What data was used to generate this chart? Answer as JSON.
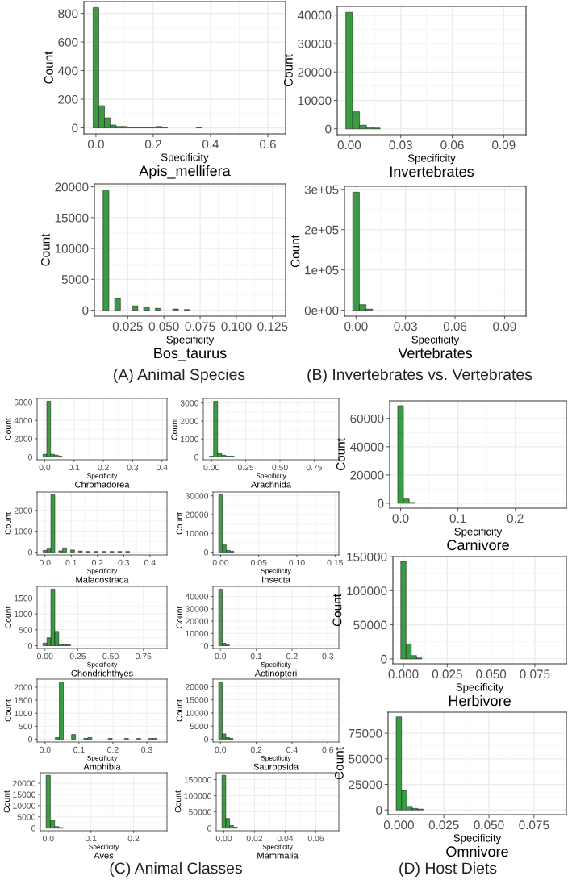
{
  "chart_data": [
    {
      "type": "histogram",
      "title": "Apis_mellifera",
      "xlabel": "Specificity",
      "ylabel": "Count",
      "color": "#3b9b43",
      "grid": true,
      "bins": [
        -0.01,
        0.01,
        0.03,
        0.05,
        0.07,
        0.09,
        0.11,
        0.13,
        0.15,
        0.17,
        0.19,
        0.21,
        0.23,
        0.25,
        0.27,
        0.29,
        0.31,
        0.33,
        0.35,
        0.37,
        0.39,
        0.41,
        0.43,
        0.45,
        0.47,
        0.49,
        0.51,
        0.53,
        0.55,
        0.57,
        0.59,
        0.61,
        0.63
      ],
      "values": [
        840,
        155,
        70,
        20,
        10,
        10,
        5,
        5,
        5,
        5,
        5,
        10,
        5,
        0,
        0,
        0,
        0,
        0,
        5,
        0,
        0,
        0,
        0,
        0,
        0,
        0,
        0,
        0,
        0,
        0,
        0,
        0
      ],
      "xlim": [
        -0.042,
        0.662
      ],
      "ylim": [
        -42,
        882
      ],
      "xticks": [
        {
          "value": 0,
          "label": "0.0"
        },
        0.2,
        0.4,
        0.6
      ],
      "yticks": [
        0,
        200,
        400,
        600,
        800
      ]
    },
    {
      "type": "histogram",
      "title": "Invertebrates",
      "xlabel": "Specificity",
      "ylabel": "Count",
      "color": "#3b9b43",
      "grid": true,
      "bins": [
        -0.002,
        0.002,
        0.006,
        0.01,
        0.014,
        0.018,
        0.022,
        0.026,
        0.03,
        0.034,
        0.038,
        0.042,
        0.046,
        0.05,
        0.054,
        0.058,
        0.062,
        0.066,
        0.07,
        0.074,
        0.078,
        0.082,
        0.086,
        0.09,
        0.094,
        0.098
      ],
      "values": [
        41000,
        6000,
        1300,
        600,
        300,
        0,
        0,
        0,
        0,
        0,
        0,
        0,
        0,
        0,
        0,
        0,
        0,
        0,
        0,
        0,
        0,
        0,
        0,
        0,
        0
      ],
      "xlim": [
        -0.007,
        0.103
      ],
      "ylim": [
        -2050,
        43050
      ],
      "xticks": [
        {
          "value": 0,
          "label": "0.00"
        },
        0.03,
        0.06,
        0.09
      ],
      "yticks": [
        0,
        10000,
        20000,
        30000,
        40000
      ]
    },
    {
      "type": "histogram",
      "title": "Bos_taurus",
      "xlabel": "Specificity",
      "ylabel": "Count",
      "color": "#3b9b43",
      "grid": true,
      "annotations": [
        "(A) Animal Species"
      ],
      "bins": [
        0.008,
        0.012,
        0.016,
        0.02,
        0.024,
        0.028,
        0.032,
        0.036,
        0.04,
        0.044,
        0.048,
        0.052,
        0.056,
        0.06,
        0.064,
        0.068,
        0.072,
        0.076,
        0.08,
        0.084,
        0.088,
        0.092,
        0.096,
        0.1,
        0.104,
        0.108,
        0.112,
        0.116,
        0.12,
        0.124,
        0.128
      ],
      "values": [
        19500,
        0,
        1900,
        0,
        0,
        700,
        0,
        500,
        0,
        300,
        0,
        0,
        200,
        0,
        100,
        0,
        0,
        0,
        0,
        0,
        0,
        0,
        0,
        0,
        0,
        0,
        0,
        0,
        0,
        0
      ],
      "xlim": [
        0.002,
        0.134
      ],
      "ylim": [
        -975,
        20475
      ],
      "xticks": [
        0.025,
        {
          "value": 0.05,
          "label": "0.050"
        },
        0.075,
        {
          "value": 0.1,
          "label": "0.100"
        },
        0.125
      ],
      "yticks": [
        0,
        5000,
        10000,
        15000,
        20000
      ]
    },
    {
      "type": "histogram",
      "title": "Vertebrates",
      "xlabel": "Specificity",
      "ylabel": "Count",
      "color": "#3b9b43",
      "grid": true,
      "annotations": [
        "(B) Invertebrates vs. Vertebrates"
      ],
      "bins": [
        -0.002,
        0.002,
        0.006,
        0.01,
        0.014,
        0.018,
        0.022,
        0.026,
        0.03,
        0.034,
        0.038,
        0.042,
        0.046,
        0.05,
        0.054,
        0.058,
        0.062,
        0.066,
        0.07,
        0.074,
        0.078,
        0.082,
        0.086,
        0.09,
        0.094,
        0.098
      ],
      "values": [
        293000,
        14000,
        3000,
        0,
        0,
        0,
        0,
        0,
        0,
        0,
        0,
        0,
        0,
        0,
        0,
        0,
        0,
        0,
        0,
        0,
        0,
        0,
        0,
        0,
        0
      ],
      "xlim": [
        -0.007,
        0.103
      ],
      "ylim": [
        -14650,
        307650
      ],
      "xticks": [
        {
          "value": 0,
          "label": "0.00"
        },
        0.03,
        0.06,
        0.09
      ],
      "yticks": [
        {
          "value": 0,
          "label": "0e+00"
        },
        {
          "value": 100000,
          "label": "1e+05"
        },
        {
          "value": 200000,
          "label": "2e+05"
        },
        {
          "value": 300000,
          "label": "3e+05"
        }
      ]
    },
    {
      "type": "histogram",
      "title": "Chromadorea",
      "xlabel": "Specificity",
      "ylabel": "Count",
      "color": "#3b9b43",
      "grid": true,
      "bins": [
        -0.006,
        0.007,
        0.02,
        0.033,
        0.046,
        0.059,
        0.072,
        0.085,
        0.098,
        0.111,
        0.124,
        0.137,
        0.15,
        0.163,
        0.176,
        0.189,
        0.202,
        0.215,
        0.228,
        0.241,
        0.254,
        0.267,
        0.28,
        0.293,
        0.306,
        0.319,
        0.332,
        0.345,
        0.358,
        0.371,
        0.384,
        0.397
      ],
      "values": [
        300,
        6100,
        300,
        200,
        100,
        0,
        0,
        0,
        0,
        0,
        0,
        0,
        0,
        0,
        0,
        0,
        0,
        0,
        0,
        0,
        0,
        0,
        0,
        0,
        0,
        0,
        0,
        0,
        0,
        0,
        0
      ],
      "xlim": [
        -0.026,
        0.417
      ],
      "ylim": [
        -305,
        6405
      ],
      "xticks": [
        {
          "value": 0,
          "label": "0.0"
        },
        0.1,
        0.2,
        0.3,
        0.4
      ],
      "yticks": [
        0,
        2000,
        4000,
        6000
      ]
    },
    {
      "type": "histogram",
      "title": "Arachnida",
      "xlabel": "Specificity",
      "ylabel": "Count",
      "color": "#3b9b43",
      "grid": true,
      "bins": [
        -0.015,
        0.015,
        0.045,
        0.075,
        0.105,
        0.135,
        0.165,
        0.195,
        0.225,
        0.255,
        0.285,
        0.315,
        0.345,
        0.375,
        0.405,
        0.435,
        0.465,
        0.495,
        0.525,
        0.555,
        0.585,
        0.615,
        0.645,
        0.675,
        0.705,
        0.735,
        0.765,
        0.795,
        0.825,
        0.855,
        0.885
      ],
      "values": [
        50,
        3100,
        200,
        100,
        50,
        50,
        0,
        0,
        0,
        0,
        0,
        0,
        0,
        0,
        0,
        0,
        0,
        0,
        0,
        0,
        0,
        0,
        0,
        0,
        0,
        0,
        0,
        0,
        0,
        0
      ],
      "xlim": [
        -0.06,
        0.93
      ],
      "ylim": [
        -155,
        3255
      ],
      "xticks": [
        {
          "value": 0,
          "label": "0.00"
        },
        0.25,
        {
          "value": 0.5,
          "label": "0.50"
        },
        0.75
      ],
      "yticks": [
        0,
        1000,
        2000,
        3000
      ]
    },
    {
      "type": "histogram",
      "title": "Malacostraca",
      "xlabel": "Specificity",
      "ylabel": "Count",
      "color": "#3b9b43",
      "grid": true,
      "bins": [
        -0.0075,
        0.0075,
        0.0225,
        0.0375,
        0.0525,
        0.0675,
        0.0825,
        0.0975,
        0.1125,
        0.1275,
        0.1425,
        0.1575,
        0.1725,
        0.1875,
        0.2025,
        0.2175,
        0.2325,
        0.2475,
        0.2625,
        0.2775,
        0.2925,
        0.3075,
        0.3225,
        0.3375,
        0.3525,
        0.3675,
        0.3825,
        0.3975,
        0.4125,
        0.4275,
        0.4425
      ],
      "values": [
        80,
        150,
        2750,
        0,
        60,
        200,
        0,
        100,
        0,
        50,
        0,
        30,
        0,
        30,
        0,
        30,
        0,
        30,
        0,
        30,
        0,
        30,
        0,
        0,
        0,
        0,
        0,
        0,
        0,
        0
      ],
      "xlim": [
        -0.03,
        0.465
      ],
      "ylim": [
        -137.5,
        2887.5
      ],
      "xticks": [
        {
          "value": 0,
          "label": "0.0"
        },
        0.1,
        0.2,
        0.3,
        0.4
      ],
      "yticks": [
        0,
        1000,
        2000
      ]
    },
    {
      "type": "histogram",
      "title": "Insecta",
      "xlabel": "Specificity",
      "ylabel": "Count",
      "color": "#3b9b43",
      "grid": true,
      "bins": [
        -0.0025,
        0.0025,
        0.0075,
        0.0125,
        0.0175,
        0.0225,
        0.0275,
        0.0325,
        0.0375,
        0.0425,
        0.0475,
        0.0525,
        0.0575,
        0.0625,
        0.0675,
        0.0725,
        0.0775,
        0.0825,
        0.0875,
        0.0925,
        0.0975,
        0.1025,
        0.1075,
        0.1125,
        0.1175,
        0.1225,
        0.1275,
        0.1325,
        0.1375,
        0.1425,
        0.1475
      ],
      "values": [
        30500,
        3800,
        900,
        400,
        0,
        0,
        0,
        0,
        0,
        0,
        0,
        0,
        0,
        0,
        0,
        0,
        0,
        0,
        0,
        0,
        0,
        0,
        0,
        0,
        0,
        0,
        0,
        0,
        0,
        0
      ],
      "xlim": [
        -0.01,
        0.155
      ],
      "ylim": [
        -1525,
        32025
      ],
      "xticks": [
        {
          "value": 0,
          "label": "0.00"
        },
        0.05,
        {
          "value": 0.1,
          "label": "0.10"
        },
        0.15
      ],
      "yticks": [
        0,
        10000,
        20000,
        30000
      ]
    },
    {
      "type": "histogram",
      "title": "Chondrichthyes",
      "xlabel": "Specificity",
      "ylabel": "Count",
      "color": "#3b9b43",
      "grid": true,
      "bins": [
        -0.015,
        0.015,
        0.045,
        0.075,
        0.105,
        0.135,
        0.165,
        0.195,
        0.225,
        0.255,
        0.285,
        0.315,
        0.345,
        0.375,
        0.405,
        0.435,
        0.465,
        0.495,
        0.525,
        0.555,
        0.585,
        0.615,
        0.645,
        0.675,
        0.705,
        0.735,
        0.765,
        0.795,
        0.825,
        0.855,
        0.885
      ],
      "values": [
        80,
        250,
        1780,
        450,
        50,
        25,
        25,
        0,
        0,
        0,
        0,
        0,
        0,
        0,
        0,
        0,
        0,
        0,
        0,
        0,
        0,
        0,
        0,
        0,
        0,
        0,
        0,
        0,
        0,
        0
      ],
      "xlim": [
        -0.06,
        0.93
      ],
      "ylim": [
        -89,
        1869
      ],
      "xticks": [
        {
          "value": 0,
          "label": "0.00"
        },
        0.25,
        {
          "value": 0.5,
          "label": "0.50"
        },
        0.75
      ],
      "yticks": [
        0,
        500,
        1000,
        1500
      ]
    },
    {
      "type": "histogram",
      "title": "Actinopteri",
      "xlabel": "Specificity",
      "ylabel": "Count",
      "color": "#3b9b43",
      "grid": true,
      "bins": [
        -0.005,
        0.005,
        0.015,
        0.025,
        0.035,
        0.045,
        0.055,
        0.065,
        0.075,
        0.085,
        0.095,
        0.105,
        0.115,
        0.125,
        0.135,
        0.145,
        0.155,
        0.165,
        0.175,
        0.185,
        0.195,
        0.205,
        0.215,
        0.225,
        0.235,
        0.245,
        0.255,
        0.265,
        0.275,
        0.285,
        0.295,
        0.305,
        0.315
      ],
      "values": [
        46000,
        2000,
        600,
        0,
        0,
        0,
        0,
        0,
        0,
        0,
        0,
        0,
        0,
        0,
        0,
        0,
        0,
        0,
        0,
        0,
        0,
        0,
        0,
        0,
        0,
        0,
        0,
        0,
        0,
        0,
        0,
        0
      ],
      "xlim": [
        -0.021,
        0.331
      ],
      "ylim": [
        -2300,
        48300
      ],
      "xticks": [
        {
          "value": 0,
          "label": "0.0"
        },
        0.1,
        0.2,
        0.3
      ],
      "yticks": [
        0,
        10000,
        20000,
        30000,
        40000
      ]
    },
    {
      "type": "histogram",
      "title": "Amphibia",
      "xlabel": "Specificity",
      "ylabel": "Count",
      "color": "#3b9b43",
      "grid": true,
      "bins": [
        -0.006,
        0.006,
        0.018,
        0.03,
        0.042,
        0.054,
        0.066,
        0.078,
        0.09,
        0.102,
        0.114,
        0.126,
        0.138,
        0.15,
        0.162,
        0.174,
        0.186,
        0.198,
        0.21,
        0.222,
        0.234,
        0.246,
        0.258,
        0.27,
        0.282,
        0.294,
        0.306,
        0.318,
        0.33,
        0.342
      ],
      "values": [
        0,
        0,
        0,
        60,
        2200,
        0,
        0,
        180,
        0,
        0,
        30,
        60,
        0,
        0,
        0,
        0,
        30,
        0,
        0,
        0,
        30,
        0,
        0,
        30,
        0,
        0,
        30,
        30,
        0
      ],
      "xlim": [
        -0.0234,
        0.3594
      ],
      "ylim": [
        -110,
        2310
      ],
      "xticks": [
        {
          "value": 0,
          "label": "0.0"
        },
        0.1,
        0.2,
        0.3
      ],
      "yticks": [
        0,
        500,
        1000,
        1500,
        2000
      ]
    },
    {
      "type": "histogram",
      "title": "Sauropsida",
      "xlabel": "Specificity",
      "ylabel": "Count",
      "color": "#3b9b43",
      "grid": true,
      "bins": [
        -0.01,
        0.01,
        0.03,
        0.05,
        0.07,
        0.09,
        0.11,
        0.13,
        0.15,
        0.17,
        0.19,
        0.21,
        0.23,
        0.25,
        0.27,
        0.29,
        0.31,
        0.33,
        0.35,
        0.37,
        0.39,
        0.41,
        0.43,
        0.45,
        0.47,
        0.49,
        0.51,
        0.53,
        0.55,
        0.57,
        0.59,
        0.61,
        0.63
      ],
      "values": [
        21800,
        2000,
        600,
        300,
        0,
        0,
        0,
        0,
        0,
        0,
        0,
        0,
        0,
        0,
        0,
        0,
        0,
        0,
        0,
        0,
        0,
        0,
        0,
        0,
        0,
        0,
        0,
        0,
        0,
        0,
        0,
        0
      ],
      "xlim": [
        -0.042,
        0.662
      ],
      "ylim": [
        -1090,
        22890
      ],
      "xticks": [
        {
          "value": 0,
          "label": "0.0"
        },
        0.2,
        0.4,
        0.6
      ],
      "yticks": [
        0,
        5000,
        10000,
        15000,
        20000
      ]
    },
    {
      "type": "histogram",
      "title": "Aves",
      "xlabel": "Specificity",
      "ylabel": "Count",
      "color": "#3b9b43",
      "grid": true,
      "bins": [
        -0.005,
        0.005,
        0.015,
        0.025,
        0.035,
        0.045,
        0.055,
        0.065,
        0.075,
        0.085,
        0.095,
        0.105,
        0.115,
        0.125,
        0.135,
        0.145,
        0.155,
        0.165,
        0.175,
        0.185,
        0.195,
        0.205,
        0.215,
        0.225,
        0.235,
        0.245,
        0.255,
        0.265
      ],
      "values": [
        23500,
        3600,
        700,
        300,
        0,
        0,
        0,
        0,
        0,
        0,
        0,
        0,
        0,
        0,
        0,
        0,
        0,
        0,
        0,
        0,
        0,
        0,
        0,
        0,
        0,
        0,
        0
      ],
      "xlim": [
        -0.0185,
        0.2785
      ],
      "ylim": [
        -1175,
        24675
      ],
      "xticks": [
        {
          "value": 0,
          "label": "0.0"
        },
        0.1,
        0.2
      ],
      "yticks": [
        0,
        5000,
        10000,
        15000,
        20000
      ]
    },
    {
      "type": "histogram",
      "title": "Mammalia",
      "xlabel": "Specificity",
      "ylabel": "Count",
      "color": "#3b9b43",
      "grid": true,
      "annotations": [
        "(C) Animal Classes"
      ],
      "bins": [
        -0.00125,
        0.00125,
        0.00375,
        0.00625,
        0.00875,
        0.01125,
        0.01375,
        0.01625,
        0.01875,
        0.02125,
        0.02375,
        0.02625,
        0.02875,
        0.03125,
        0.03375,
        0.03625,
        0.03875,
        0.04125,
        0.04375,
        0.04625,
        0.04875,
        0.05125,
        0.05375,
        0.05625,
        0.05875,
        0.06125,
        0.06375,
        0.06625,
        0.06875,
        0.07125
      ],
      "values": [
        163000,
        30000,
        8000,
        3000,
        0,
        0,
        0,
        0,
        0,
        0,
        0,
        0,
        0,
        0,
        0,
        0,
        0,
        0,
        0,
        0,
        0,
        0,
        0,
        0,
        0,
        0,
        0,
        0,
        0
      ],
      "xlim": [
        -0.005,
        0.075
      ],
      "ylim": [
        -8150,
        171150
      ],
      "xticks": [
        {
          "value": 0,
          "label": "0.00"
        },
        0.02,
        0.04,
        0.06
      ],
      "yticks": [
        0,
        50000,
        100000,
        150000
      ]
    },
    {
      "type": "histogram",
      "title": "Carnivore",
      "xlabel": "Specificity",
      "ylabel": "Count",
      "color": "#3b9b43",
      "grid": true,
      "bins": [
        -0.005,
        0.005,
        0.015,
        0.025,
        0.035,
        0.045,
        0.055,
        0.065,
        0.075,
        0.085,
        0.095,
        0.105,
        0.115,
        0.125,
        0.135,
        0.145,
        0.155,
        0.165,
        0.175,
        0.185,
        0.195,
        0.205,
        0.215,
        0.225,
        0.235,
        0.245,
        0.255,
        0.265,
        0.275
      ],
      "values": [
        69000,
        3000,
        600,
        0,
        0,
        0,
        0,
        0,
        0,
        0,
        0,
        0,
        0,
        0,
        0,
        0,
        0,
        0,
        0,
        0,
        0,
        0,
        0,
        0,
        0,
        0,
        0,
        0
      ],
      "xlim": [
        -0.019,
        0.289
      ],
      "ylim": [
        -3450,
        72450
      ],
      "xticks": [
        {
          "value": 0,
          "label": "0.0"
        },
        0.1,
        0.2
      ],
      "yticks": [
        0,
        20000,
        40000,
        60000
      ]
    },
    {
      "type": "histogram",
      "title": "Herbivore",
      "xlabel": "Specificity",
      "ylabel": "Count",
      "color": "#3b9b43",
      "grid": true,
      "bins": [
        -0.0015,
        0.0015,
        0.0045,
        0.0075,
        0.0105,
        0.0135,
        0.0165,
        0.0195,
        0.0225,
        0.0255,
        0.0285,
        0.0315,
        0.0345,
        0.0375,
        0.0405,
        0.0435,
        0.0465,
        0.0495,
        0.0525,
        0.0555,
        0.0585,
        0.0615,
        0.0645,
        0.0675,
        0.0705,
        0.0735,
        0.0765,
        0.0795,
        0.0825,
        0.0855,
        0.0885
      ],
      "values": [
        143000,
        22000,
        5000,
        1500,
        0,
        0,
        0,
        0,
        0,
        0,
        0,
        0,
        0,
        0,
        0,
        0,
        0,
        0,
        0,
        0,
        0,
        0,
        0,
        0,
        0,
        0,
        0,
        0,
        0,
        0
      ],
      "xlim": [
        -0.006,
        0.093
      ],
      "ylim": [
        -7150,
        150150
      ],
      "xticks": [
        {
          "value": 0,
          "label": "0.000"
        },
        0.025,
        {
          "value": 0.05,
          "label": "0.050"
        },
        0.075
      ],
      "yticks": [
        0,
        50000,
        100000,
        150000
      ]
    },
    {
      "type": "histogram",
      "title": "Omnivore",
      "xlabel": "Specificity",
      "ylabel": "Count",
      "color": "#3b9b43",
      "grid": true,
      "annotations": [
        "(D) Host Diets"
      ],
      "bins": [
        -0.0015,
        0.0015,
        0.0045,
        0.0075,
        0.0105,
        0.0135,
        0.0165,
        0.0195,
        0.0225,
        0.0255,
        0.0285,
        0.0315,
        0.0345,
        0.0375,
        0.0405,
        0.0435,
        0.0465,
        0.0495,
        0.0525,
        0.0555,
        0.0585,
        0.0615,
        0.0645,
        0.0675,
        0.0705,
        0.0735,
        0.0765,
        0.0795,
        0.0825,
        0.0855,
        0.0885
      ],
      "values": [
        91000,
        19000,
        3500,
        1500,
        800,
        0,
        0,
        0,
        0,
        0,
        0,
        0,
        0,
        0,
        0,
        0,
        0,
        0,
        0,
        0,
        0,
        0,
        0,
        0,
        0,
        0,
        0,
        0,
        0,
        0
      ],
      "xlim": [
        -0.006,
        0.093
      ],
      "ylim": [
        -4550,
        95550
      ],
      "xticks": [
        {
          "value": 0,
          "label": "0.000"
        },
        0.025,
        {
          "value": 0.05,
          "label": "0.050"
        },
        0.075
      ],
      "yticks": [
        0,
        25000,
        50000,
        75000
      ]
    }
  ]
}
